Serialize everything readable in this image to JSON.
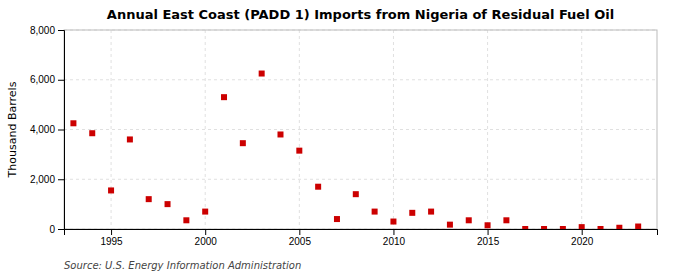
{
  "chart_data": {
    "type": "scatter",
    "title": "Annual East Coast (PADD 1) Imports from Nigeria of Residual Fuel Oil",
    "ylabel": "Thousand Barrels",
    "source": "Source: U.S. Energy Information Administration",
    "x": [
      1993,
      1994,
      1995,
      1996,
      1997,
      1998,
      1999,
      2000,
      2001,
      2002,
      2003,
      2004,
      2005,
      2006,
      2007,
      2008,
      2009,
      2010,
      2011,
      2012,
      2013,
      2014,
      2015,
      2016,
      2017,
      2018,
      2019,
      2020,
      2021,
      2022,
      2023
    ],
    "values": [
      4250,
      3850,
      1550,
      3600,
      1200,
      1000,
      350,
      700,
      5300,
      3450,
      6250,
      3800,
      3150,
      1700,
      400,
      1400,
      700,
      300,
      650,
      700,
      175,
      350,
      150,
      350,
      0,
      0,
      0,
      75,
      0,
      50,
      100
    ],
    "color": "#cc0000",
    "marker": "square",
    "grid": true,
    "xlim": [
      1992.5,
      2024
    ],
    "xticks": [
      1995,
      2000,
      2005,
      2010,
      2015,
      2020
    ],
    "ylim": [
      0,
      8000
    ],
    "yticks": [
      0,
      {
        "value": 2000,
        "label": "2,000"
      },
      {
        "value": 4000,
        "label": "4,000"
      },
      {
        "value": 6000,
        "label": "6,000"
      },
      {
        "value": 8000,
        "label": "8,000"
      }
    ]
  }
}
